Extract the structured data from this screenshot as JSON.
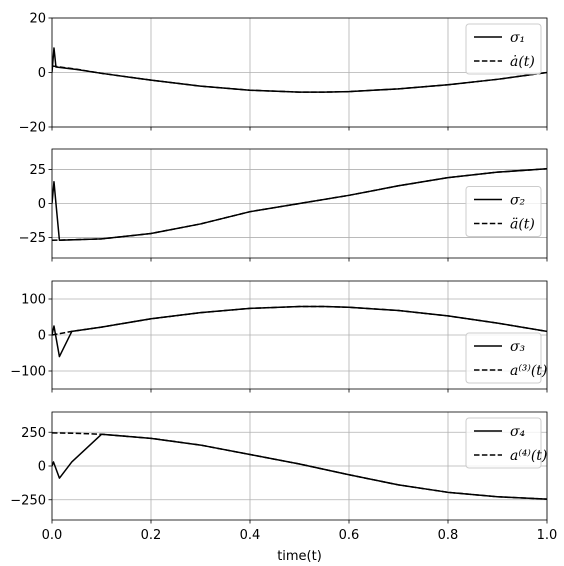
{
  "chart_data": [
    {
      "type": "line",
      "xlim": [
        0,
        1.0
      ],
      "ylim": [
        -20,
        20
      ],
      "yticks": [
        -20,
        0,
        20
      ],
      "ytick_labels": [
        "−20",
        "0",
        "20"
      ],
      "grid": true,
      "legend_position": "top-right",
      "series": [
        {
          "name": "σ₁",
          "style": "solid",
          "x": [
            0.0,
            0.004,
            0.008,
            0.05,
            0.1,
            0.2,
            0.3,
            0.4,
            0.5,
            0.55,
            0.6,
            0.7,
            0.8,
            0.9,
            1.0
          ],
          "y": [
            0.0,
            9.0,
            2.0,
            1.1,
            -0.3,
            -2.8,
            -5.0,
            -6.5,
            -7.2,
            -7.2,
            -7.0,
            -6.0,
            -4.5,
            -2.5,
            0.0
          ]
        },
        {
          "name": "ȧ(t)",
          "style": "dashed",
          "x": [
            0.0,
            0.05,
            0.1,
            0.2,
            0.3,
            0.4,
            0.5,
            0.55,
            0.6,
            0.7,
            0.8,
            0.9,
            1.0
          ],
          "y": [
            2.4,
            1.2,
            -0.3,
            -2.8,
            -5.0,
            -6.5,
            -7.2,
            -7.2,
            -7.0,
            -6.0,
            -4.5,
            -2.5,
            0.0
          ]
        }
      ]
    },
    {
      "type": "line",
      "xlim": [
        0,
        1.0
      ],
      "ylim": [
        -40,
        40
      ],
      "yticks": [
        -25,
        0,
        25
      ],
      "ytick_labels": [
        "−25",
        "0",
        "25"
      ],
      "grid": true,
      "legend_position": "center-right",
      "series": [
        {
          "name": "σ₂",
          "style": "solid",
          "x": [
            0.0,
            0.004,
            0.008,
            0.015,
            0.1,
            0.2,
            0.3,
            0.4,
            0.5,
            0.6,
            0.7,
            0.8,
            0.9,
            1.0
          ],
          "y": [
            0.0,
            16.0,
            0.0,
            -27.0,
            -26.0,
            -22.0,
            -15.0,
            -6.0,
            0.0,
            6.0,
            13.0,
            19.0,
            23.0,
            25.5
          ]
        },
        {
          "name": "ä(t)",
          "style": "dashed",
          "x": [
            0.0,
            0.1,
            0.2,
            0.3,
            0.4,
            0.5,
            0.6,
            0.7,
            0.8,
            0.9,
            1.0
          ],
          "y": [
            -27.0,
            -26.0,
            -22.0,
            -15.0,
            -6.0,
            0.0,
            6.0,
            13.0,
            19.0,
            23.0,
            25.5
          ]
        }
      ]
    },
    {
      "type": "line",
      "xlim": [
        0,
        1.0
      ],
      "ylim": [
        -150,
        150
      ],
      "yticks": [
        -100,
        0,
        100
      ],
      "ytick_labels": [
        "−100",
        "0",
        "100"
      ],
      "grid": true,
      "legend_position": "bottom-right",
      "series": [
        {
          "name": "σ₃",
          "style": "solid",
          "x": [
            0.0,
            0.004,
            0.015,
            0.04,
            0.1,
            0.2,
            0.3,
            0.4,
            0.5,
            0.55,
            0.6,
            0.7,
            0.8,
            0.9,
            1.0
          ],
          "y": [
            0.0,
            25.0,
            -60.0,
            10.0,
            22.0,
            45.0,
            62.0,
            74.0,
            79.0,
            79.0,
            77.0,
            68.0,
            53.0,
            33.0,
            10.0
          ]
        },
        {
          "name": "a⁽³⁾(t)",
          "style": "dashed",
          "x": [
            0.0,
            0.04,
            0.1,
            0.2,
            0.3,
            0.4,
            0.5,
            0.55,
            0.6,
            0.7,
            0.8,
            0.9,
            1.0
          ],
          "y": [
            0.0,
            10.0,
            22.0,
            45.0,
            62.0,
            74.0,
            79.0,
            79.0,
            77.0,
            68.0,
            53.0,
            33.0,
            10.0
          ]
        }
      ]
    },
    {
      "type": "line",
      "xlim": [
        0,
        1.0
      ],
      "ylim": [
        -400,
        400
      ],
      "yticks": [
        -250,
        0,
        250
      ],
      "ytick_labels": [
        "−250",
        "0",
        "250"
      ],
      "xticks": [
        0.0,
        0.2,
        0.4,
        0.6,
        0.8,
        1.0
      ],
      "xtick_labels": [
        "0.0",
        "0.2",
        "0.4",
        "0.6",
        "0.8",
        "1.0"
      ],
      "xlabel": "time(t)",
      "grid": true,
      "legend_position": "top-right",
      "series": [
        {
          "name": "σ₄",
          "style": "solid",
          "x": [
            0.0,
            0.003,
            0.015,
            0.04,
            0.1,
            0.2,
            0.3,
            0.4,
            0.5,
            0.6,
            0.7,
            0.8,
            0.9,
            1.0
          ],
          "y": [
            0.0,
            30.0,
            -90.0,
            30.0,
            235.0,
            205.0,
            155.0,
            85.0,
            15.0,
            -65.0,
            -140.0,
            -195.0,
            -228.0,
            -245.0
          ]
        },
        {
          "name": "a⁽⁴⁾(t)",
          "style": "dashed",
          "x": [
            0.0,
            0.05,
            0.1,
            0.2,
            0.3,
            0.4,
            0.5,
            0.6,
            0.7,
            0.8,
            0.9,
            1.0
          ],
          "y": [
            245.0,
            242.0,
            235.0,
            205.0,
            155.0,
            85.0,
            15.0,
            -65.0,
            -140.0,
            -195.0,
            -228.0,
            -245.0
          ]
        }
      ]
    }
  ]
}
